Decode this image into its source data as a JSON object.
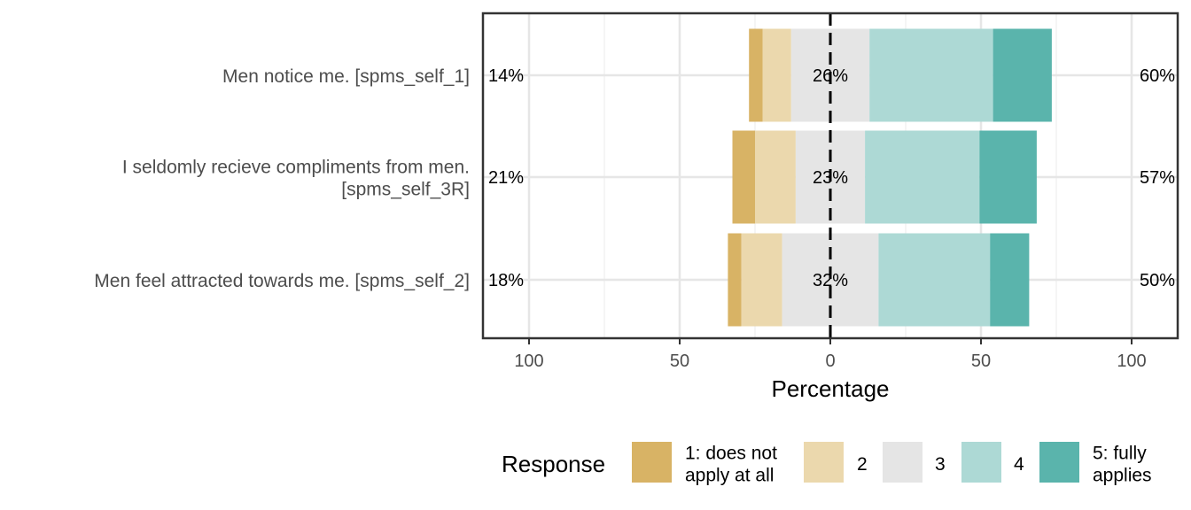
{
  "chart_data": {
    "type": "bar",
    "subtype": "diverging-stacked-likert",
    "xlabel": "Percentage",
    "xlim": [
      -115,
      115
    ],
    "x_ticks": [
      -100,
      -50,
      0,
      50,
      100
    ],
    "x_tick_labels": [
      "100",
      "50",
      "0",
      "50",
      "100"
    ],
    "grid": true,
    "legend": {
      "title": "Response",
      "position": "bottom",
      "entries": [
        {
          "lines": [
            "1: does not",
            "apply at all"
          ],
          "color": "#d8b365"
        },
        {
          "lines": [
            "2"
          ],
          "color": "#ebd8ad"
        },
        {
          "lines": [
            "3"
          ],
          "color": "#e5e5e5"
        },
        {
          "lines": [
            "4"
          ],
          "color": "#add9d5"
        },
        {
          "lines": [
            "5: fully",
            "applies"
          ],
          "color": "#5ab4ac"
        }
      ]
    },
    "categories": [
      {
        "lines": [
          "Men notice me. [spms_self_1]"
        ]
      },
      {
        "lines": [
          "I seldomly recieve compliments from men.",
          "[spms_self_3R]"
        ]
      },
      {
        "lines": [
          "Men feel attracted towards me. [spms_self_2]"
        ]
      }
    ],
    "series": [
      {
        "name": "1: does not apply at all",
        "values": [
          4.5,
          7.5,
          4.5
        ]
      },
      {
        "name": "2",
        "values": [
          9.5,
          13.5,
          13.5
        ]
      },
      {
        "name": "3",
        "values": [
          26,
          23,
          32
        ]
      },
      {
        "name": "4",
        "values": [
          41,
          38,
          37
        ]
      },
      {
        "name": "5: fully applies",
        "values": [
          19.5,
          19,
          13
        ]
      }
    ],
    "left_labels": [
      "14%",
      "21%",
      "18%"
    ],
    "center_labels": [
      "26%",
      "23%",
      "32%"
    ],
    "right_labels": [
      "60%",
      "57%",
      "50%"
    ]
  }
}
